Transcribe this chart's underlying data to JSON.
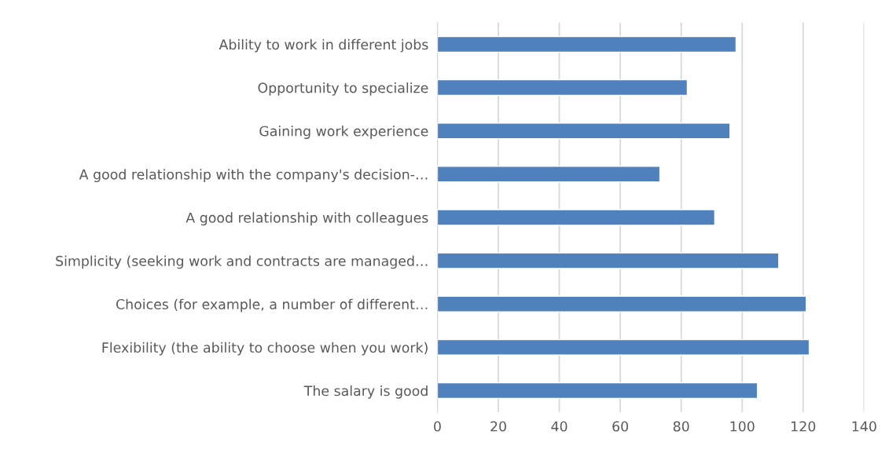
{
  "chart_data": {
    "type": "bar",
    "orientation": "horizontal",
    "categories": [
      "Ability to work in different jobs",
      "Opportunity to specialize",
      "Gaining work experience",
      "A good relationship with the company's decision-…",
      "A good relationship with colleagues",
      "Simplicity (seeking work and contracts are managed…",
      "Choices (for example, a number of different…",
      "Flexibility (the ability to choose when you work)",
      "The salary is good"
    ],
    "values": [
      98,
      82,
      96,
      73,
      91,
      112,
      121,
      122,
      105
    ],
    "color": "#4f81bd",
    "xlim": [
      0,
      140
    ],
    "xticks": [
      0,
      20,
      40,
      60,
      80,
      100,
      120,
      140
    ],
    "grid": "x",
    "legend": false
  }
}
